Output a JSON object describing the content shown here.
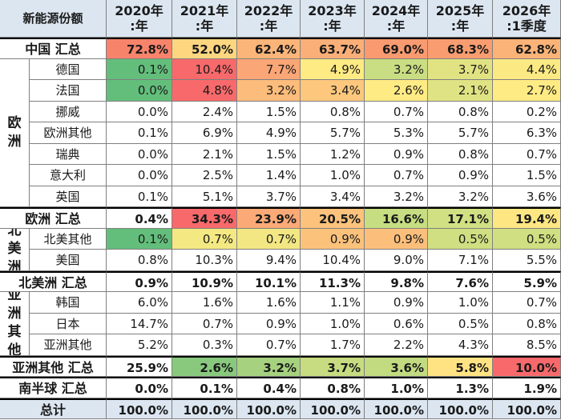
{
  "chart_data": {
    "type": "table",
    "corner": "新能源份额",
    "columns": [
      {
        "year": "2020年",
        "sub": ":年"
      },
      {
        "year": "2021年",
        "sub": ":年"
      },
      {
        "year": "2022年",
        "sub": ":年"
      },
      {
        "year": "2023年",
        "sub": ":年"
      },
      {
        "year": "2024年",
        "sub": ":年"
      },
      {
        "year": "2025年",
        "sub": ":年"
      },
      {
        "year": "2026年",
        "sub": ":1季度"
      }
    ],
    "rows": [
      {
        "region": "",
        "label": "中国 汇总",
        "total": true,
        "values": [
          "72.8%",
          "52.0%",
          "62.4%",
          "63.7%",
          "69.0%",
          "68.3%",
          "62.8%"
        ],
        "colors": [
          "#f8836b",
          "#fed680",
          "#fcb579",
          "#fbaf78",
          "#f99a70",
          "#f99d71",
          "#fbb378"
        ]
      },
      {
        "region": "欧洲",
        "label": "德国",
        "total": false,
        "values": [
          "0.1%",
          "10.4%",
          "7.7%",
          "4.9%",
          "3.2%",
          "3.7%",
          "4.4%"
        ],
        "colors": [
          "#63be7b",
          "#f8696b",
          "#fba676",
          "#ffeb84",
          "#c9de82",
          "#e1e383",
          "#fbea84"
        ]
      },
      {
        "region": "欧洲",
        "label": "法国",
        "total": false,
        "values": [
          "0.0%",
          "4.8%",
          "3.2%",
          "3.4%",
          "2.6%",
          "2.1%",
          "2.7%"
        ],
        "colors": [
          "#63be7b",
          "#f8696b",
          "#fcbc7b",
          "#fdc87d",
          "#ffeb84",
          "#e0e383",
          "#ffeb84"
        ]
      },
      {
        "region": "欧洲",
        "label": "挪威",
        "total": false,
        "values": [
          "0.0%",
          "2.4%",
          "1.5%",
          "0.8%",
          "0.7%",
          "0.8%",
          "0.2%"
        ],
        "colors": []
      },
      {
        "region": "欧洲",
        "label": "欧洲其他",
        "total": false,
        "values": [
          "0.1%",
          "6.9%",
          "4.9%",
          "5.7%",
          "5.3%",
          "5.7%",
          "6.3%"
        ],
        "colors": []
      },
      {
        "region": "欧洲",
        "label": "瑞典",
        "total": false,
        "values": [
          "0.0%",
          "2.1%",
          "1.5%",
          "1.2%",
          "0.9%",
          "0.8%",
          "0.7%"
        ],
        "colors": []
      },
      {
        "region": "欧洲",
        "label": "意大利",
        "total": false,
        "values": [
          "0.0%",
          "2.5%",
          "1.4%",
          "1.0%",
          "0.7%",
          "0.9%",
          "1.5%"
        ],
        "colors": []
      },
      {
        "region": "欧洲",
        "label": "英国",
        "total": false,
        "values": [
          "0.1%",
          "5.1%",
          "3.7%",
          "3.4%",
          "3.2%",
          "3.2%",
          "3.6%"
        ],
        "colors": []
      },
      {
        "region": "",
        "label": "欧洲 汇总",
        "total": true,
        "values": [
          "0.4%",
          "34.3%",
          "23.9%",
          "20.5%",
          "16.6%",
          "17.1%",
          "19.4%"
        ],
        "colors": [
          "#ffffff",
          "#f8696b",
          "#fbaa77",
          "#fdc27c",
          "#c6dd81",
          "#d1e082",
          "#fee783"
        ]
      },
      {
        "region": "北美洲",
        "label": "北美其他",
        "total": false,
        "values": [
          "0.1%",
          "0.7%",
          "0.7%",
          "0.9%",
          "0.9%",
          "0.5%",
          "0.5%"
        ],
        "colors": [
          "#63be7b",
          "#f4e883",
          "#f2e783",
          "#fbc27c",
          "#fcbf7b",
          "#cfdf82",
          "#cfdf82"
        ]
      },
      {
        "region": "北美洲",
        "label": "美国",
        "total": false,
        "values": [
          "0.8%",
          "10.3%",
          "9.4%",
          "10.4%",
          "9.0%",
          "7.1%",
          "5.5%"
        ],
        "colors": []
      },
      {
        "region": "",
        "label": "北美洲 汇总",
        "total": true,
        "values": [
          "0.9%",
          "10.9%",
          "10.1%",
          "11.3%",
          "9.8%",
          "7.6%",
          "5.9%"
        ],
        "colors": []
      },
      {
        "region": "亚洲其他",
        "label": "韩国",
        "total": false,
        "values": [
          "6.0%",
          "1.6%",
          "1.6%",
          "1.1%",
          "0.9%",
          "1.0%",
          "0.7%"
        ],
        "colors": []
      },
      {
        "region": "亚洲其他",
        "label": "日本",
        "total": false,
        "values": [
          "14.7%",
          "0.7%",
          "0.9%",
          "1.0%",
          "0.6%",
          "0.5%",
          "0.8%"
        ],
        "colors": []
      },
      {
        "region": "亚洲其他",
        "label": "亚洲其他",
        "total": false,
        "values": [
          "5.2%",
          "0.3%",
          "0.7%",
          "1.7%",
          "2.2%",
          "4.3%",
          "8.5%"
        ],
        "colors": []
      },
      {
        "region": "",
        "label": "亚洲其他 汇总",
        "total": true,
        "values": [
          "25.9%",
          "2.6%",
          "3.2%",
          "3.7%",
          "3.6%",
          "5.8%",
          "10.0%"
        ],
        "colors": [
          "#ffffff",
          "#88c97d",
          "#a6d27f",
          "#c7dc80",
          "#c2db80",
          "#ffe383",
          "#f8696b"
        ]
      },
      {
        "region": "",
        "label": "南半球 汇总",
        "total": true,
        "values": [
          "0.0%",
          "0.1%",
          "0.4%",
          "0.8%",
          "1.0%",
          "1.3%",
          "1.9%"
        ],
        "colors": []
      },
      {
        "region": "",
        "label": "总计",
        "total": true,
        "values": [
          "100.0%",
          "100.0%",
          "100.0%",
          "100.0%",
          "100.0%",
          "100.0%",
          "100.0%"
        ],
        "colors": [
          "#dce6f1",
          "#dce6f1",
          "#dce6f1",
          "#dce6f1",
          "#dce6f1",
          "#dce6f1",
          "#dce6f1"
        ]
      }
    ]
  }
}
